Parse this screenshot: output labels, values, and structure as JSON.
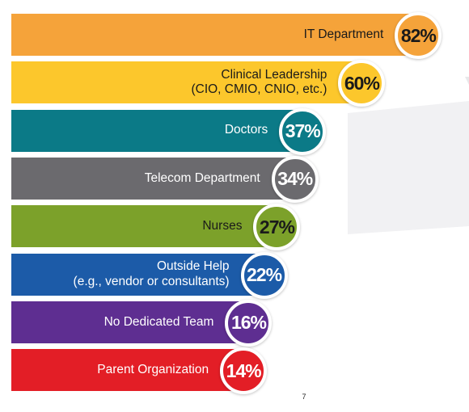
{
  "chart_data": {
    "type": "bar",
    "orientation": "horizontal",
    "title": "",
    "xlabel": "",
    "ylabel": "",
    "xlim": [
      0,
      100
    ],
    "categories": [
      "IT Department",
      "Clinical Leadership (CIO, CMIO, CNIO, etc.)",
      "Doctors",
      "Telecom Department",
      "Nurses",
      "Outside Help (e.g., vendor or consultants)",
      "No Dedicated Team",
      "Parent Organization"
    ],
    "values": [
      82,
      60,
      37,
      34,
      27,
      22,
      16,
      14
    ],
    "bars": [
      {
        "label_lines": [
          "IT Department"
        ],
        "value": 82,
        "value_label": "82%",
        "color": "#F5A33A",
        "text_color": "#1a1a1a"
      },
      {
        "label_lines": [
          "Clinical Leadership",
          "(CIO, CMIO, CNIO, etc.)"
        ],
        "value": 60,
        "value_label": "60%",
        "color": "#FCC72C",
        "text_color": "#1a1a1a"
      },
      {
        "label_lines": [
          "Doctors"
        ],
        "value": 37,
        "value_label": "37%",
        "color": "#0B7A87",
        "text_color": "#ffffff"
      },
      {
        "label_lines": [
          "Telecom Department"
        ],
        "value": 34,
        "value_label": "34%",
        "color": "#6B6A6E",
        "text_color": "#ffffff"
      },
      {
        "label_lines": [
          "Nurses"
        ],
        "value": 27,
        "value_label": "27%",
        "color": "#7CA12A",
        "text_color": "#1a1a1a"
      },
      {
        "label_lines": [
          "Outside Help",
          "(e.g., vendor or consultants)"
        ],
        "value": 22,
        "value_label": "22%",
        "color": "#1C5BA8",
        "text_color": "#ffffff"
      },
      {
        "label_lines": [
          "No Dedicated Team"
        ],
        "value": 16,
        "value_label": "16%",
        "color": "#5E2E91",
        "text_color": "#ffffff"
      },
      {
        "label_lines": [
          "Parent Organization"
        ],
        "value": 14,
        "value_label": "14%",
        "color": "#E31E26",
        "text_color": "#ffffff"
      }
    ]
  },
  "page": {
    "number": "7"
  }
}
